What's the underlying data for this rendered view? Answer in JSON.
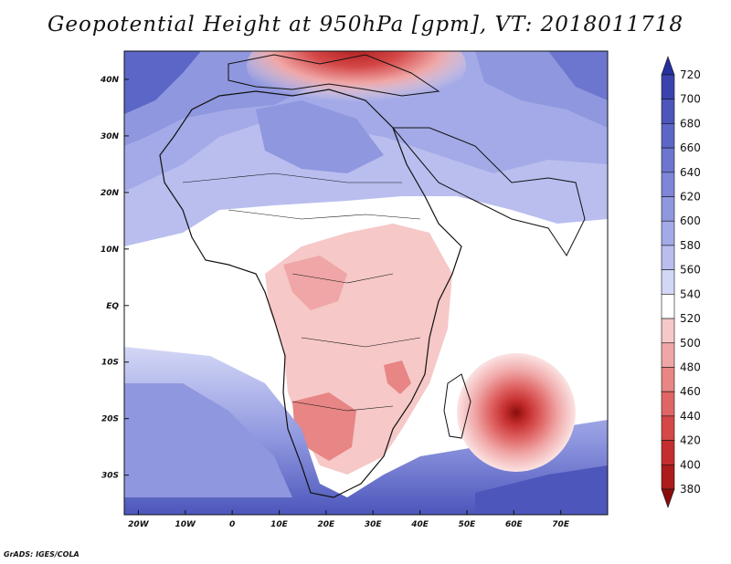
{
  "title": "Geopotential Height at 950hPa [gpm], VT: 2018011718",
  "footer": "GrADS: IGES/COLA",
  "map": {
    "region": "Africa and surrounding oceans",
    "lon_range": [
      -23,
      80
    ],
    "lat_range": [
      -37,
      45
    ],
    "lon_ticks": [
      {
        "value": -20,
        "label": "20W"
      },
      {
        "value": -10,
        "label": "10W"
      },
      {
        "value": 0,
        "label": "0"
      },
      {
        "value": 10,
        "label": "10E"
      },
      {
        "value": 20,
        "label": "20E"
      },
      {
        "value": 30,
        "label": "30E"
      },
      {
        "value": 40,
        "label": "40E"
      },
      {
        "value": 50,
        "label": "50E"
      },
      {
        "value": 60,
        "label": "60E"
      },
      {
        "value": 70,
        "label": "70E"
      }
    ],
    "lat_ticks": [
      {
        "value": 40,
        "label": "40N"
      },
      {
        "value": 30,
        "label": "30N"
      },
      {
        "value": 20,
        "label": "20N"
      },
      {
        "value": 10,
        "label": "10N"
      },
      {
        "value": 0,
        "label": "EQ"
      },
      {
        "value": -10,
        "label": "10S"
      },
      {
        "value": -20,
        "label": "20S"
      },
      {
        "value": -30,
        "label": "30S"
      }
    ]
  },
  "colorbar": {
    "levels": [
      "720",
      "700",
      "680",
      "660",
      "640",
      "620",
      "600",
      "580",
      "560",
      "540",
      "520",
      "500",
      "480",
      "460",
      "440",
      "420",
      "400",
      "380"
    ],
    "colors": [
      "#262f9e",
      "#3a43ad",
      "#4c56bb",
      "#5c66c6",
      "#6c76cf",
      "#7d86d7",
      "#8f97df",
      "#a3aae7",
      "#b9beef",
      "#d3d7f6",
      "#ffffff",
      "#f6c8c8",
      "#f0a6a6",
      "#e88585",
      "#e06666",
      "#d54848",
      "#c52e2e",
      "#ad1c1c",
      "#8a0d0d"
    ]
  },
  "colors": {
    "low_center": "#8a0d0d",
    "high_center": "#262f9e"
  }
}
